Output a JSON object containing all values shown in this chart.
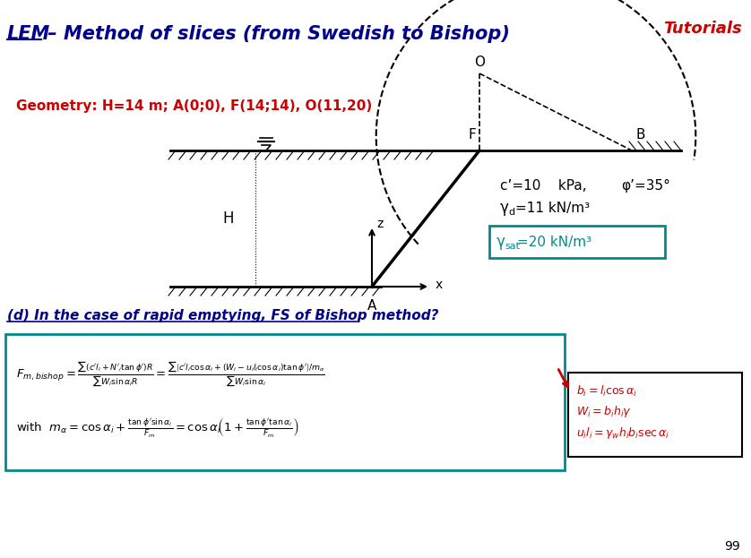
{
  "title_lem": "LEM",
  "title_rest": " – Method of slices (from Swedish to Bishop)",
  "tutorials_text": "Tutorials",
  "bg_color": "#FFFFFF",
  "geometry_text": "Geometry: H=14 m; A(0;0), F(14;14), O(11,20)",
  "question_text": "(d) In the case of rapid emptying, FS of Bishop method?",
  "page_number": "99",
  "formula_box_color": "#008B8B",
  "note_box_color": "#000000",
  "arrow_color": "#CC0000",
  "title_color": "#00008B",
  "red_color": "#CC0000",
  "teal_color": "#008B8B"
}
